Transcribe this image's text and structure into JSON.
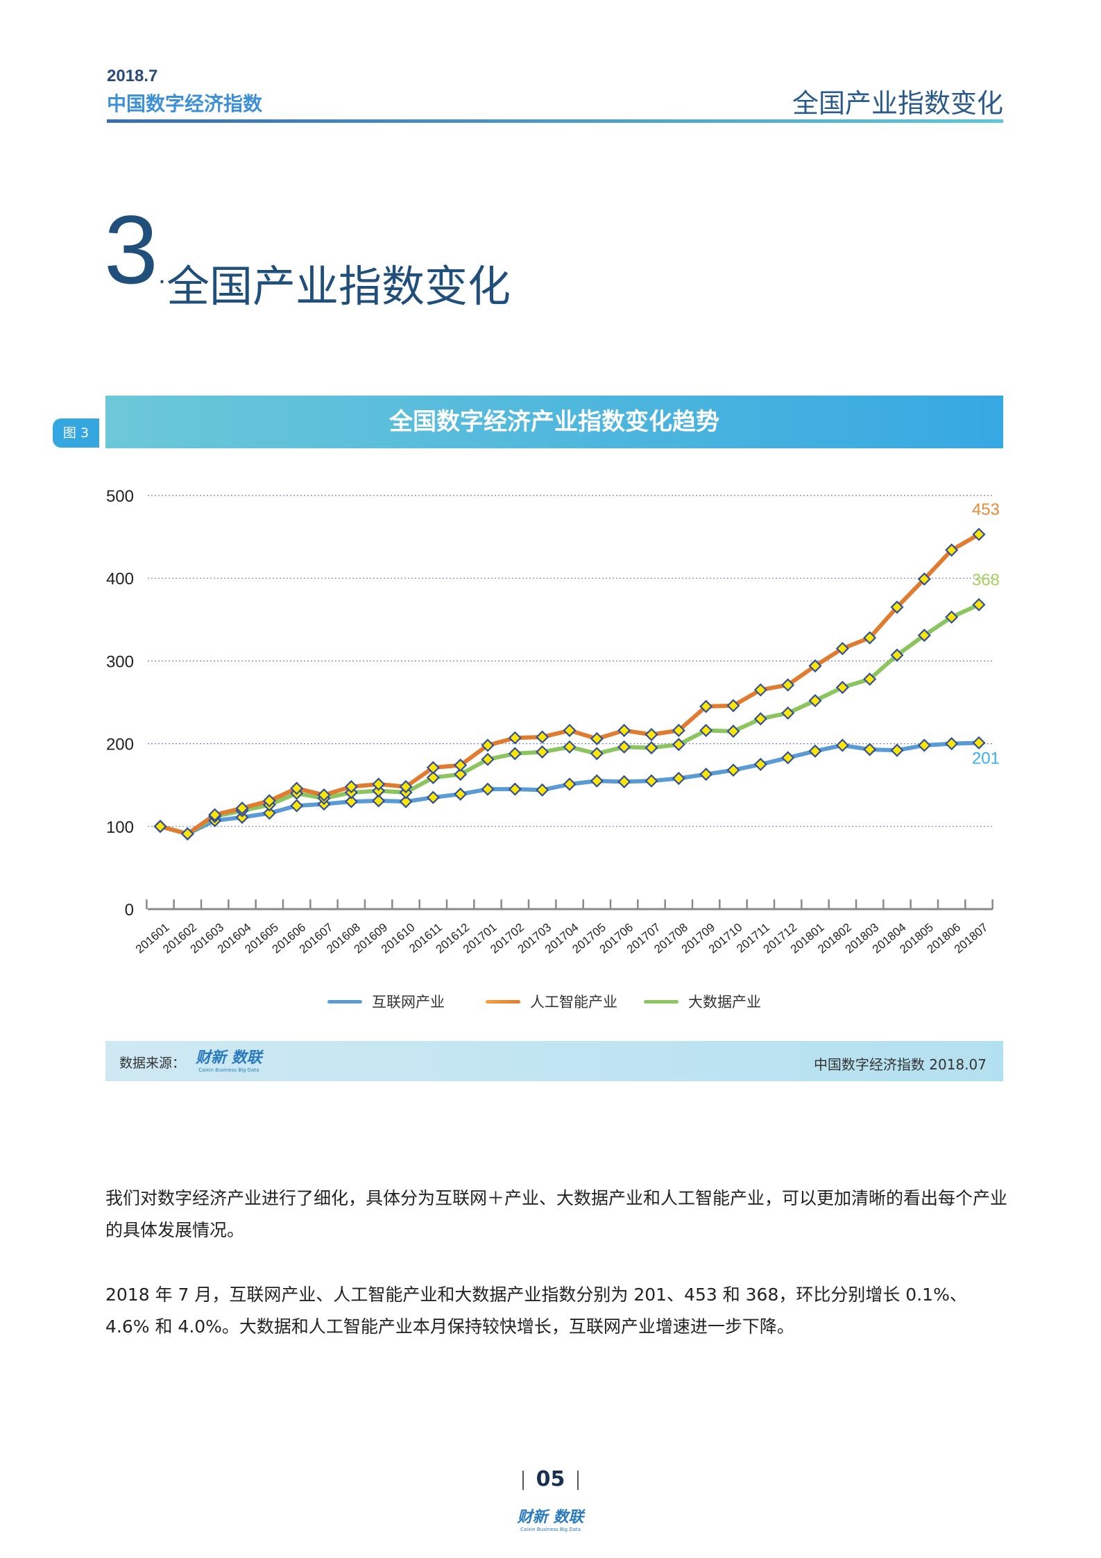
{
  "header": {
    "date": "2018.7",
    "report_name": "中国数字经济指数",
    "section_title": "全国产业指数变化"
  },
  "section": {
    "number": "3",
    "dot": ".",
    "title": "全国产业指数变化"
  },
  "figure": {
    "tag": "图 3",
    "title": "全国数字经济产业指数变化趋势"
  },
  "chart_data": {
    "type": "line",
    "title": "全国数字经济产业指数变化趋势",
    "xlabel": "",
    "ylabel": "",
    "ylim": [
      0,
      500
    ],
    "yticks": [
      "0",
      "100",
      "200",
      "300",
      "400",
      "500"
    ],
    "grid": true,
    "legend_position": "bottom",
    "categories": [
      "201601",
      "201602",
      "201603",
      "201604",
      "201605",
      "201606",
      "201607",
      "201608",
      "201609",
      "201610",
      "201611",
      "201612",
      "201701",
      "201702",
      "201703",
      "201704",
      "201705",
      "201706",
      "201707",
      "201708",
      "201709",
      "201710",
      "201711",
      "201712",
      "201801",
      "201802",
      "201803",
      "201804",
      "201805",
      "201806",
      "201807"
    ],
    "series": [
      {
        "name": "互联网产业",
        "color": "#5b9bd5",
        "values": [
          100,
          91,
          107,
          111,
          116,
          125,
          127,
          130,
          131,
          130,
          135,
          139,
          145,
          145,
          144,
          151,
          155,
          154,
          155,
          158,
          163,
          168,
          175,
          183,
          191,
          198,
          193,
          192,
          198,
          200,
          201
        ],
        "end_label": "201",
        "end_label_color": "#3aaee8"
      },
      {
        "name": "人工智能产业",
        "color": "#e07b30",
        "values": [
          100,
          91,
          114,
          122,
          131,
          146,
          138,
          148,
          151,
          148,
          171,
          174,
          198,
          207,
          208,
          216,
          206,
          216,
          211,
          216,
          245,
          246,
          265,
          271,
          294,
          315,
          328,
          365,
          399,
          434,
          453
        ],
        "end_label": "453",
        "end_label_color": "#e88a3a"
      },
      {
        "name": "大数据产业",
        "color": "#8cc560",
        "values": [
          100,
          91,
          112,
          119,
          126,
          140,
          134,
          141,
          143,
          141,
          159,
          163,
          181,
          188,
          190,
          196,
          188,
          196,
          195,
          199,
          216,
          215,
          230,
          237,
          252,
          268,
          278,
          307,
          331,
          353,
          368
        ],
        "end_label": "368",
        "end_label_color": "#a6d05a"
      }
    ],
    "marker": {
      "shape": "diamond",
      "fill": "#ffe600",
      "stroke": "#2f4f9a"
    }
  },
  "source": {
    "label": "数据来源：",
    "logo_text": "财新 数联",
    "logo_sub": "Caixin Business Big Data",
    "right_text": "中国数字经济指数 2018.07"
  },
  "body": {
    "paragraph1": "我们对数字经济产业进行了细化，具体分为互联网＋产业、大数据产业和人工智能产业，可以更加清晰的看出每个产业的具体发展情况。",
    "paragraph2": "2018 年 7 月，互联网产业、人工智能产业和大数据产业指数分别为 201、453 和 368，环比分别增长 0.1%、4.6% 和 4.0%。大数据和人工智能产业本月保持较快增长，互联网产业增速进一步下降。"
  },
  "footer": {
    "page": "05",
    "logo_text": "财新 数联",
    "logo_sub": "Caixin Business Big Data"
  }
}
